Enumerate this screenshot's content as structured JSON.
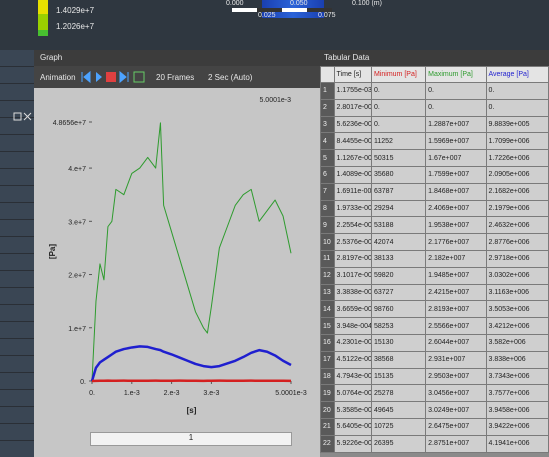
{
  "top_bar": {
    "legend_values": [
      "1.4029e+7",
      "1.2026e+7"
    ],
    "scale_labels": [
      "0.000",
      "0.050",
      "0.100 (m)",
      "0.025",
      "0.075"
    ]
  },
  "graph_panel": {
    "title": "Graph",
    "animation": "Animation",
    "frames": "20 Frames",
    "duration": "2 Sec (Auto)",
    "slider_value": "1"
  },
  "chart_data": {
    "type": "line",
    "x_label": "[s]",
    "y_label": "[Pa]",
    "annotation": "5.0001e-3",
    "x": [
      0,
      0.0001,
      0.0002,
      0.0003,
      0.0004,
      0.0005,
      0.0006,
      0.0008,
      0.001,
      0.0012,
      0.0014,
      0.0016,
      0.00172,
      0.0018,
      0.002,
      0.0022,
      0.0024,
      0.0026,
      0.0028,
      0.0029,
      0.003,
      0.0032,
      0.0034,
      0.0036,
      0.0038,
      0.004,
      0.0042,
      0.0044,
      0.0046,
      0.0048,
      0.005
    ],
    "series": [
      {
        "color": "#2e9b2e",
        "values": [
          0,
          15000000,
          22000000,
          19000000,
          29000000,
          30000000,
          36000000,
          35000000,
          39000000,
          40000000,
          42000000,
          40000000,
          48500000,
          33000000,
          28000000,
          23000000,
          18000000,
          13000000,
          10000000,
          9000000,
          14000000,
          25000000,
          29000000,
          33000000,
          35000000,
          36000000,
          30000000,
          32000000,
          34000000,
          31000000,
          24000000
        ]
      },
      {
        "color": "#1f1fcf",
        "values": [
          0,
          2500000,
          3500000,
          4000000,
          4500000,
          5000000,
          5500000,
          6000000,
          6300000,
          6500000,
          6400000,
          6000000,
          5800000,
          5500000,
          5000000,
          4400000,
          3800000,
          3200000,
          2800000,
          2700000,
          2600000,
          2800000,
          3300000,
          3800000,
          4500000,
          5300000,
          5800000,
          5500000,
          4800000,
          3800000,
          3000000
        ]
      },
      {
        "color": "#d42020",
        "values": [
          0,
          30000,
          50000,
          40000,
          60000,
          50000,
          40000,
          60000,
          50000,
          40000,
          50000,
          60000,
          50000,
          40000,
          50000,
          60000,
          40000,
          50000,
          30000,
          40000,
          50000,
          60000,
          40000,
          50000,
          40000,
          60000,
          50000,
          40000,
          50000,
          40000,
          30000
        ]
      }
    ],
    "xlim": [
      0,
      0.0050001
    ],
    "ylim": [
      0,
      48656000
    ],
    "xticks": [
      {
        "value": 0,
        "label": "0."
      },
      {
        "value": 0.001,
        "label": "1.e-3"
      },
      {
        "value": 0.002,
        "label": "2.e-3"
      },
      {
        "value": 0.003,
        "label": "3.e-3"
      },
      {
        "value": 0.0050001,
        "label": "5.0001e-3"
      }
    ],
    "yticks": [
      {
        "value": 0,
        "label": "0."
      },
      {
        "value": 10000000,
        "label": "1.e+7"
      },
      {
        "value": 20000000,
        "label": "2.e+7"
      },
      {
        "value": 30000000,
        "label": "3.e+7"
      },
      {
        "value": 40000000,
        "label": "4.e+7"
      },
      {
        "value": 48656000,
        "label": "4.8656e+7"
      }
    ]
  },
  "tabular_data": {
    "title": "Tabular Data",
    "columns": [
      "Time [s]",
      "Minimum [Pa]",
      "Maximum [Pa]",
      "Average [Pa]"
    ],
    "rows": [
      [
        "1",
        "1.1755e-038",
        "0.",
        "0.",
        "0."
      ],
      [
        "2",
        "2.8017e-005",
        "0.",
        "0.",
        "0."
      ],
      [
        "3",
        "5.6236e-005",
        "0.",
        "1.2887e+007",
        "9.8839e+005"
      ],
      [
        "4",
        "8.4455e-005",
        "11252",
        "1.5969e+007",
        "1.7099e+006"
      ],
      [
        "5",
        "1.1267e-004",
        "50315",
        "1.67e+007",
        "1.7226e+006"
      ],
      [
        "6",
        "1.4089e-004",
        "35680",
        "1.7599e+007",
        "2.0905e+006"
      ],
      [
        "7",
        "1.6911e-004",
        "63787",
        "1.8468e+007",
        "2.1682e+006"
      ],
      [
        "8",
        "1.9733e-004",
        "29294",
        "2.4069e+007",
        "2.1979e+006"
      ],
      [
        "9",
        "2.2554e-004",
        "53188",
        "1.9538e+007",
        "2.4632e+006"
      ],
      [
        "10",
        "2.5376e-004",
        "42074",
        "2.1776e+007",
        "2.8776e+006"
      ],
      [
        "11",
        "2.8197e-004",
        "38133",
        "2.182e+007",
        "2.9718e+006"
      ],
      [
        "12",
        "3.1017e-004",
        "59820",
        "1.9485e+007",
        "3.0302e+006"
      ],
      [
        "13",
        "3.3838e-004",
        "63727",
        "2.4215e+007",
        "3.1163e+006"
      ],
      [
        "14",
        "3.6659e-004",
        "98760",
        "2.8193e+007",
        "3.5053e+006"
      ],
      [
        "15",
        "3.948e-004",
        "58253",
        "2.5566e+007",
        "3.4212e+006"
      ],
      [
        "16",
        "4.2301e-004",
        "15130",
        "2.6044e+007",
        "3.582e+006"
      ],
      [
        "17",
        "4.5122e-004",
        "38568",
        "2.931e+007",
        "3.838e+006"
      ],
      [
        "18",
        "4.7943e-004",
        "15135",
        "2.9503e+007",
        "3.7343e+006"
      ],
      [
        "19",
        "5.0764e-004",
        "25278",
        "3.0456e+007",
        "3.7577e+006"
      ],
      [
        "20",
        "5.3585e-004",
        "49645",
        "3.0249e+007",
        "3.9458e+006"
      ],
      [
        "21",
        "5.6405e-004",
        "10725",
        "2.6475e+007",
        "3.9422e+006"
      ],
      [
        "22",
        "5.9226e-004",
        "26395",
        "2.8751e+007",
        "4.1941e+006"
      ]
    ]
  }
}
